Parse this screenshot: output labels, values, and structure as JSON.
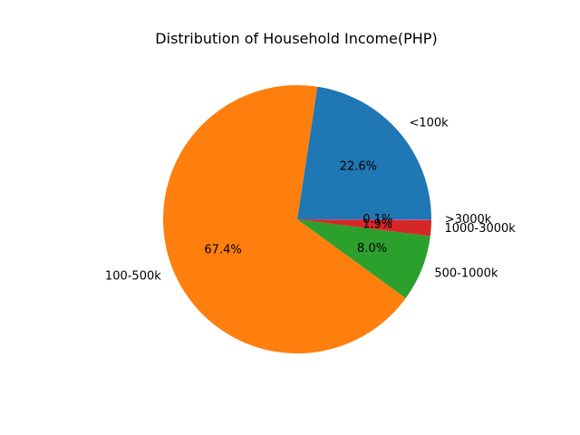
{
  "chart_data": {
    "type": "pie",
    "title": "Distribution of Household Income(PHP)",
    "start_angle_deg": 0,
    "direction": "counterclockwise",
    "slices": [
      {
        "label": "<100k",
        "value": 22.6,
        "pct_label": "22.6%",
        "color": "#1f77b4"
      },
      {
        "label": "100-500k",
        "value": 67.4,
        "pct_label": "67.4%",
        "color": "#ff7f0e"
      },
      {
        "label": "500-1000k",
        "value": 8.0,
        "pct_label": "8.0%",
        "color": "#2ca02c"
      },
      {
        "label": "1000-3000k",
        "value": 1.9,
        "pct_label": "1.9%",
        "color": "#d62728"
      },
      {
        "label": ">3000k",
        "value": 0.1,
        "pct_label": "0.1%",
        "color": "#9467bd"
      }
    ]
  }
}
